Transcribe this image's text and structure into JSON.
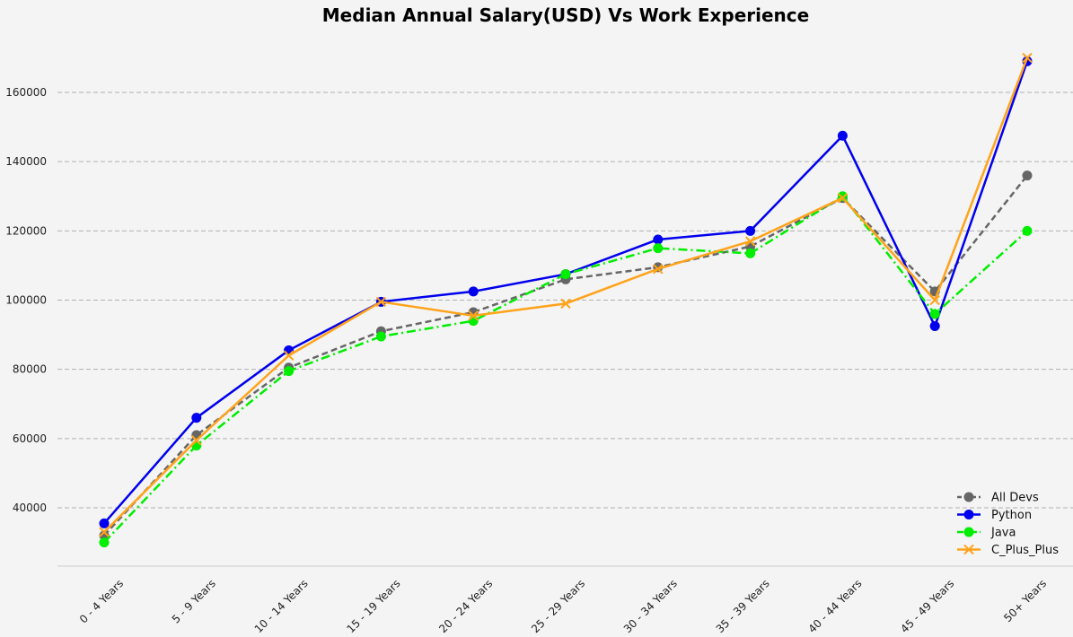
{
  "chart_data": {
    "type": "line",
    "title": "Median Annual Salary(USD)  Vs  Work Experience",
    "xlabel": "",
    "ylabel": "",
    "categories": [
      "0 - 4 Years",
      "5 - 9 Years",
      "10 - 14 Years",
      "15 - 19 Years",
      "20 - 24 Years",
      "25 - 29 Years",
      "30 - 34 Years",
      "35 - 39 Years",
      "40 - 44 Years",
      "45 - 49 Years",
      "50+ Years"
    ],
    "yticks": [
      40000,
      60000,
      80000,
      100000,
      120000,
      140000,
      160000
    ],
    "ylim": [
      23000,
      175000
    ],
    "grid": "horizontal dashed",
    "legend_position": "bottom-right",
    "series": [
      {
        "name": "All Devs",
        "color": "#666666",
        "dash": "dashed",
        "marker": "circle",
        "values": [
          32000,
          61000,
          80500,
          91000,
          96500,
          106000,
          109500,
          115500,
          129500,
          102500,
          136000
        ]
      },
      {
        "name": "Python",
        "color": "#0000ee",
        "dash": "solid",
        "marker": "circle",
        "values": [
          35500,
          66000,
          85500,
          99500,
          102500,
          107500,
          117500,
          120000,
          147500,
          92500,
          169000
        ]
      },
      {
        "name": "Java",
        "color": "#00ee00",
        "dash": "dashdot",
        "marker": "circle",
        "values": [
          30000,
          58000,
          79500,
          89500,
          94000,
          107500,
          115000,
          113500,
          130000,
          96000,
          120000
        ]
      },
      {
        "name": "C_Plus_Plus",
        "color": "#ffa31a",
        "dash": "solid",
        "marker": "x",
        "values": [
          33000,
          59500,
          84000,
          99500,
          95500,
          99000,
          109000,
          117000,
          129500,
          100000,
          170000
        ]
      }
    ]
  }
}
